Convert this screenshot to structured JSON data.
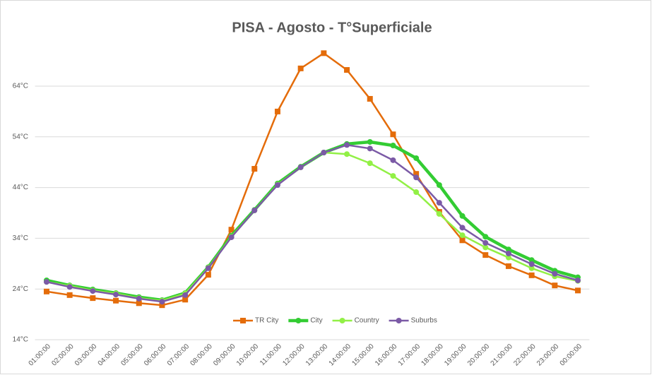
{
  "chart_data": {
    "type": "line",
    "title": "PISA - Agosto - T°Superficiale",
    "categories": [
      "01:00:00",
      "02:00:00",
      "03:00:00",
      "04:00:00",
      "05:00:00",
      "06:00:00",
      "07:00:00",
      "08:00:00",
      "09:00:00",
      "10:00:00",
      "11:00:00",
      "12:00:00",
      "13:00:00",
      "14:00:00",
      "15:00:00",
      "16:00:00",
      "17:00:00",
      "18:00:00",
      "19:00:00",
      "20:00:00",
      "21:00:00",
      "22:00:00",
      "23:00:00",
      "00:00:00"
    ],
    "series": [
      {
        "name": "TR City",
        "color": "#e46c0a",
        "marker": "square",
        "width": 2.5,
        "values": [
          23.5,
          22.8,
          22.2,
          21.7,
          21.2,
          20.8,
          21.9,
          26.8,
          35.7,
          47.7,
          59.0,
          67.5,
          70.5,
          67.2,
          61.5,
          54.5,
          46.7,
          39.2,
          33.6,
          30.7,
          28.5,
          26.7,
          24.7,
          23.7
        ]
      },
      {
        "name": "City",
        "color": "#33cc33",
        "marker": "circle",
        "width": 4.5,
        "values": [
          25.7,
          24.7,
          23.9,
          23.2,
          22.4,
          21.8,
          23.2,
          28.3,
          34.5,
          39.6,
          44.8,
          48.1,
          50.9,
          52.6,
          53.0,
          52.3,
          49.8,
          44.5,
          38.4,
          34.3,
          31.8,
          29.7,
          27.6,
          26.3
        ]
      },
      {
        "name": "Country",
        "color": "#92f046",
        "marker": "circle",
        "width": 2.5,
        "values": [
          25.4,
          24.6,
          23.7,
          23.1,
          22.2,
          21.7,
          23.1,
          28.2,
          34.3,
          39.5,
          44.6,
          48.0,
          50.9,
          50.6,
          48.8,
          46.3,
          43.1,
          38.8,
          34.6,
          32.2,
          30.2,
          28.1,
          26.5,
          25.6
        ]
      },
      {
        "name": "Suburbs",
        "color": "#7b5aa6",
        "marker": "circle",
        "width": 2.5,
        "values": [
          25.4,
          24.4,
          23.6,
          22.9,
          22.1,
          21.5,
          22.8,
          28.1,
          34.2,
          39.5,
          44.5,
          48.0,
          50.9,
          52.4,
          51.7,
          49.4,
          46.0,
          41.0,
          36.1,
          33.1,
          31.0,
          28.9,
          27.0,
          25.7
        ]
      }
    ],
    "ylim": [
      14,
      72
    ],
    "yticks": [
      {
        "value": 14,
        "label": "14°C"
      },
      {
        "value": 24,
        "label": "24°C"
      },
      {
        "value": 34,
        "label": "34°C"
      },
      {
        "value": 44,
        "label": "44°C"
      },
      {
        "value": 54,
        "label": "54°C"
      },
      {
        "value": 64,
        "label": "64°C"
      }
    ],
    "grid": true,
    "legend": "bottom"
  }
}
